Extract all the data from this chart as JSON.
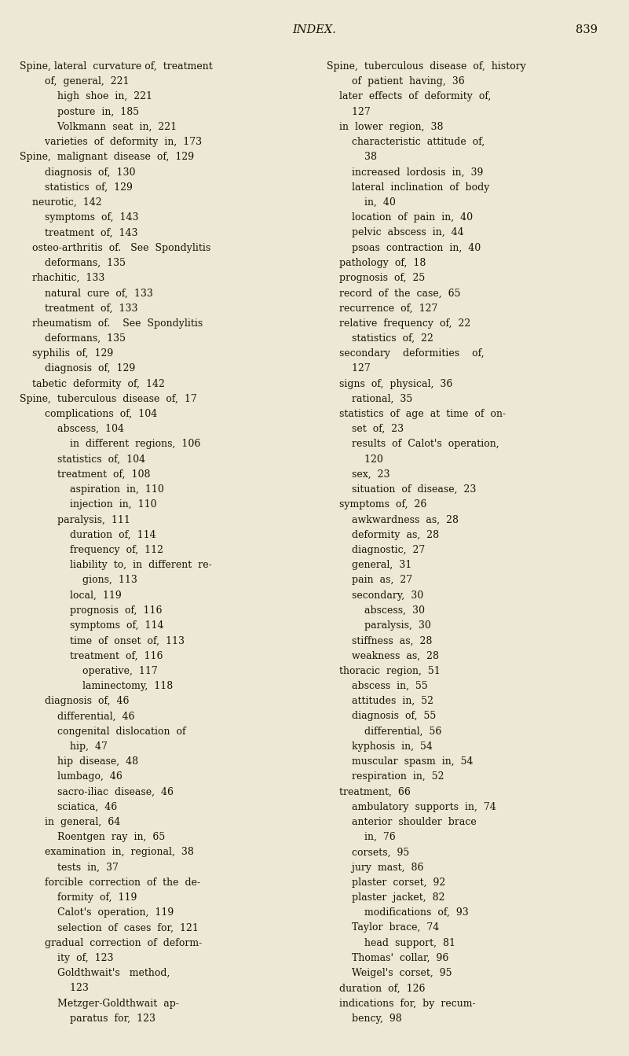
{
  "bg_color": "#ede8d5",
  "text_color": "#1a1208",
  "title": "INDEX.",
  "page_num": "839",
  "title_fontsize": 10.5,
  "body_fontsize": 9.0,
  "left_lines": [
    "Spine, lateral  curvature of,  treatment",
    "        of,  general,  221",
    "            high  shoe  in,  221",
    "            posture  in,  185",
    "            Volkmann  seat  in,  221",
    "        varieties  of  deformity  in,  173",
    "Spine,  malignant  disease  of,  129",
    "        diagnosis  of,  130",
    "        statistics  of,  129",
    "    neurotic,  142",
    "        symptoms  of,  143",
    "        treatment  of,  143",
    "    osteo-arthritis  of.   See  Spondylitis",
    "        deformans,  135",
    "    rhachitic,  133",
    "        natural  cure  of,  133",
    "        treatment  of,  133",
    "    rheumatism  of.    See  Spondylitis",
    "        deformans,  135",
    "    syphilis  of,  129",
    "        diagnosis  of,  129",
    "    tabetic  deformity  of,  142",
    "Spine,  tuberculous  disease  of,  17",
    "        complications  of,  104",
    "            abscess,  104",
    "                in  different  regions,  106",
    "            statistics  of,  104",
    "            treatment  of,  108",
    "                aspiration  in,  110",
    "                injection  in,  110",
    "            paralysis,  111",
    "                duration  of,  114",
    "                frequency  of,  112",
    "                liability  to,  in  different  re-",
    "                    gions,  113",
    "                local,  119",
    "                prognosis  of,  116",
    "                symptoms  of,  114",
    "                time  of  onset  of,  113",
    "                treatment  of,  116",
    "                    operative,  117",
    "                    laminectomy,  118",
    "        diagnosis  of,  46",
    "            differential,  46",
    "            congenital  dislocation  of",
    "                hip,  47",
    "            hip  disease,  48",
    "            lumbago,  46",
    "            sacro-iliac  disease,  46",
    "            sciatica,  46",
    "        in  general,  64",
    "            Roentgen  ray  in,  65",
    "        examination  in,  regional,  38",
    "            tests  in,  37",
    "        forcible  correction  of  the  de-",
    "            formity  of,  119",
    "            Calot's  operation,  119",
    "            selection  of  cases  for,  121",
    "        gradual  correction  of  deform-",
    "            ity  of,  123",
    "            Goldthwait's   method,",
    "                123",
    "            Metzger-Goldthwait  ap-",
    "                paratus  for,  123"
  ],
  "right_lines": [
    "Spine,  tuberculous  disease  of,  history",
    "        of  patient  having,  36",
    "    later  effects  of  deformity  of,",
    "        127",
    "    in  lower  region,  38",
    "        characteristic  attitude  of,",
    "            38",
    "        increased  lordosis  in,  39",
    "        lateral  inclination  of  body",
    "            in,  40",
    "        location  of  pain  in,  40",
    "        pelvic  abscess  in,  44",
    "        psoas  contraction  in,  40",
    "    pathology  of,  18",
    "    prognosis  of,  25",
    "    record  of  the  case,  65",
    "    recurrence  of,  127",
    "    relative  frequency  of,  22",
    "        statistics  of,  22",
    "    secondary    deformities    of,",
    "        127",
    "    signs  of,  physical,  36",
    "        rational,  35",
    "    statistics  of  age  at  time  of  on-",
    "        set  of,  23",
    "        results  of  Calot's  operation,",
    "            120",
    "        sex,  23",
    "        situation  of  disease,  23",
    "    symptoms  of,  26",
    "        awkwardness  as,  28",
    "        deformity  as,  28",
    "        diagnostic,  27",
    "        general,  31",
    "        pain  as,  27",
    "        secondary,  30",
    "            abscess,  30",
    "            paralysis,  30",
    "        stiffness  as,  28",
    "        weakness  as,  28",
    "    thoracic  region,  51",
    "        abscess  in,  55",
    "        attitudes  in,  52",
    "        diagnosis  of,  55",
    "            differential,  56",
    "        kyphosis  in,  54",
    "        muscular  spasm  in,  54",
    "        respiration  in,  52",
    "    treatment,  66",
    "        ambulatory  supports  in,  74",
    "        anterior  shoulder  brace",
    "            in,  76",
    "        corsets,  95",
    "        jury  mast,  86",
    "        plaster  corset,  92",
    "        plaster  jacket,  82",
    "            modifications  of,  93",
    "        Taylor  brace,  74",
    "            head  support,  81",
    "        Thomas'  collar,  96",
    "        Weigel's  corset,  95",
    "    duration  of,  126",
    "    indications  for,  by  recum-",
    "        bency,  98"
  ]
}
